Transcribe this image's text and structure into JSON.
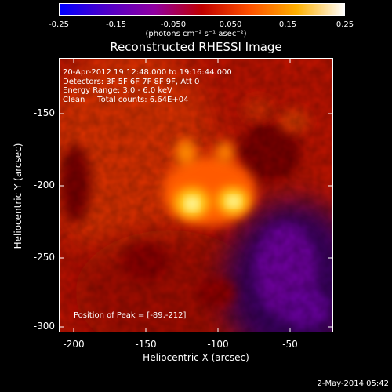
{
  "colorbar": {
    "ticks": [
      "-0.25",
      "-0.15",
      "-0.050",
      "0.050",
      "0.15",
      "0.25"
    ],
    "units": "(photons cm⁻² s⁻¹ asec⁻²)",
    "palette": [
      "#0000ff",
      "#5000c8",
      "#9000a0",
      "#c00000",
      "#ff5000",
      "#ffb000",
      "#ffffff"
    ]
  },
  "title": "Reconstructed RHESSI Image",
  "info": {
    "time": "20-Apr-2012 19:12:48.000 to 19:16:44.000",
    "detectors": "Detectors: 3F 5F 6F 7F 8F 9F, Att 0",
    "energy": "Energy Range: 3.0 - 6.0 keV",
    "clean": "Clean     Total counts: 6.64E+04"
  },
  "peak": "Position of Peak = [-89,-212]",
  "axes": {
    "xlabel": "Heliocentric X (arcsec)",
    "ylabel": "Heliocentric Y (arcsec)",
    "xticks": [
      "-200",
      "-150",
      "-100",
      "-50"
    ],
    "yticks": [
      "-150",
      "-200",
      "-250",
      "-300"
    ]
  },
  "footer": "2-May-2014 05:42"
}
